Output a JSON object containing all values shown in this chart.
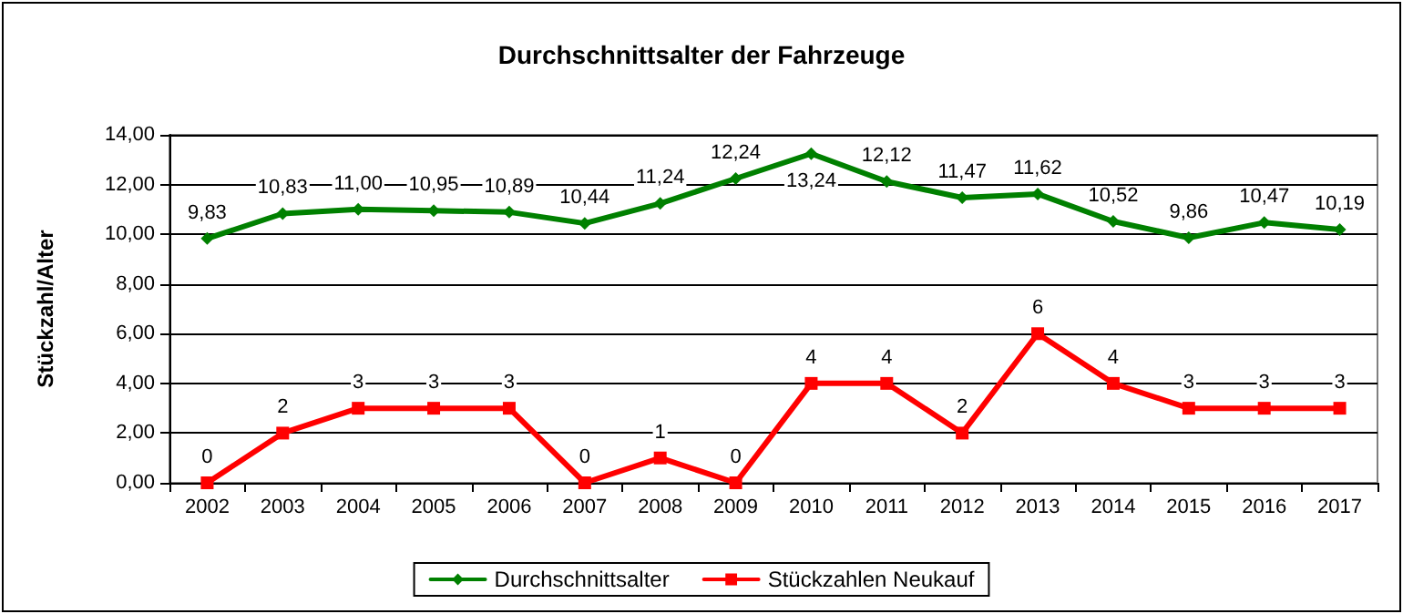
{
  "chart_data": {
    "type": "line",
    "title": "Durchschnittsalter der Fahrzeuge",
    "ylabel": "Stückzahl/Alter",
    "categories": [
      "2002",
      "2003",
      "2004",
      "2005",
      "2006",
      "2007",
      "2008",
      "2009",
      "2010",
      "2011",
      "2012",
      "2013",
      "2014",
      "2015",
      "2016",
      "2017"
    ],
    "series": [
      {
        "name": "Durchschnittsalter",
        "color": "#008000",
        "marker": "diamond",
        "values": [
          9.83,
          10.83,
          11.0,
          10.95,
          10.89,
          10.44,
          11.24,
          12.24,
          13.24,
          12.12,
          11.47,
          11.62,
          10.52,
          9.86,
          10.47,
          10.19
        ],
        "value_labels": [
          "9,83",
          "10,83",
          "11,00",
          "10,95",
          "10,89",
          "10,44",
          "11,24",
          "12,24",
          "13,24",
          "12,12",
          "11,47",
          "11,62",
          "10,52",
          "9,86",
          "10,47",
          "10,19"
        ]
      },
      {
        "name": "Stückzahlen Neukauf",
        "color": "#ff0000",
        "marker": "square",
        "values": [
          0,
          2,
          3,
          3,
          3,
          0,
          1,
          0,
          4,
          4,
          2,
          6,
          4,
          3,
          3,
          3
        ],
        "value_labels": [
          "0",
          "2",
          "3",
          "3",
          "3",
          "0",
          "1",
          "0",
          "4",
          "4",
          "2",
          "6",
          "4",
          "3",
          "3",
          "3"
        ]
      }
    ],
    "ylim": [
      0,
      14
    ],
    "yticks": [
      {
        "value": 0,
        "label": "0,00"
      },
      {
        "value": 2,
        "label": "2,00"
      },
      {
        "value": 4,
        "label": "4,00"
      },
      {
        "value": 6,
        "label": "6,00"
      },
      {
        "value": 8,
        "label": "8,00"
      },
      {
        "value": 10,
        "label": "10,00"
      },
      {
        "value": 12,
        "label": "12,00"
      },
      {
        "value": 14,
        "label": "14,00"
      }
    ],
    "grid": "y",
    "legend": "bottom",
    "line_style": "solid"
  }
}
